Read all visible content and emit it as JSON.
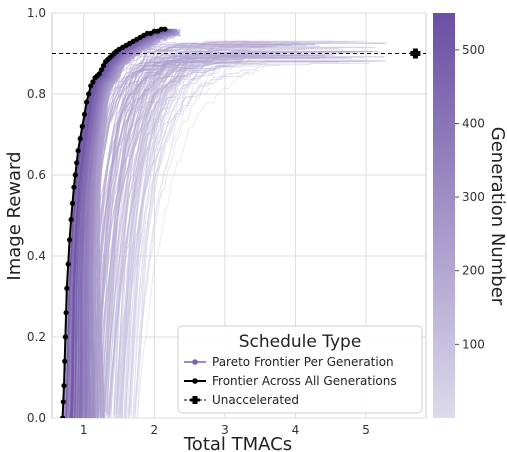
{
  "chart_data": {
    "type": "line",
    "title": "",
    "xlabel": "Total TMACs",
    "ylabel": "Image Reward",
    "xlim": [
      0.55,
      5.85
    ],
    "ylim": [
      0.0,
      1.0
    ],
    "xticks": [
      "1",
      "2",
      "3",
      "4",
      "5"
    ],
    "yticks": [
      "0.0",
      "0.2",
      "0.4",
      "0.6",
      "0.8",
      "1.0"
    ],
    "grid": true,
    "colorbar": {
      "label": "Generation Number",
      "range": [
        0,
        550
      ],
      "ticks": [
        "100",
        "200",
        "300",
        "400",
        "500"
      ],
      "color_low": "#dcdaec",
      "color_high": "#6a4fa3"
    },
    "legend": {
      "title": "Schedule Type",
      "placement": "lower-right",
      "entries": [
        "Pareto Frontier Per Generation",
        "Frontier Across All Generations",
        "Unaccelerated"
      ]
    },
    "series": [
      {
        "name": "Frontier Across All Generations",
        "color": "#000000",
        "x": [
          0.7,
          0.71,
          0.72,
          0.73,
          0.74,
          0.75,
          0.76,
          0.78,
          0.8,
          0.82,
          0.84,
          0.86,
          0.88,
          0.9,
          0.92,
          0.95,
          0.98,
          1.01,
          1.04,
          1.07,
          1.1,
          1.13,
          1.16,
          1.19,
          1.22,
          1.25,
          1.28,
          1.31,
          1.34,
          1.37,
          1.4,
          1.43,
          1.46,
          1.5,
          1.55,
          1.6,
          1.65,
          1.7,
          1.75,
          1.8,
          1.85,
          1.9,
          1.95,
          2.0,
          2.05,
          2.1,
          2.15
        ],
        "y": [
          0.0,
          0.04,
          0.08,
          0.14,
          0.2,
          0.26,
          0.32,
          0.38,
          0.44,
          0.49,
          0.53,
          0.57,
          0.6,
          0.63,
          0.66,
          0.69,
          0.72,
          0.75,
          0.78,
          0.8,
          0.82,
          0.83,
          0.84,
          0.845,
          0.85,
          0.86,
          0.87,
          0.88,
          0.885,
          0.89,
          0.895,
          0.9,
          0.905,
          0.91,
          0.915,
          0.92,
          0.925,
          0.93,
          0.935,
          0.94,
          0.945,
          0.95,
          0.95,
          0.955,
          0.955,
          0.96,
          0.96
        ]
      },
      {
        "name": "Unaccelerated",
        "color": "#000000",
        "x": [
          5.7
        ],
        "y": [
          0.9
        ],
        "reference_line_y": 0.9
      }
    ]
  }
}
